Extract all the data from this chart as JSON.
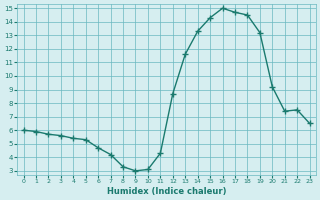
{
  "x": [
    0,
    1,
    2,
    3,
    4,
    5,
    6,
    7,
    8,
    9,
    10,
    11,
    12,
    13,
    14,
    15,
    16,
    17,
    18,
    19,
    20,
    21,
    22,
    23
  ],
  "y": [
    6.0,
    5.9,
    5.7,
    5.6,
    5.4,
    5.3,
    4.7,
    4.2,
    3.3,
    3.0,
    3.1,
    4.3,
    8.7,
    11.6,
    13.3,
    14.3,
    15.0,
    14.7,
    14.5,
    13.2,
    9.2,
    7.4,
    7.5,
    6.5
  ],
  "xlabel": "Humidex (Indice chaleur)",
  "line_color": "#1a7a6e",
  "bg_color": "#d6eef0",
  "grid_color": "#6ab8c0",
  "ylim": [
    3,
    15
  ],
  "xlim": [
    0,
    23
  ],
  "yticks": [
    3,
    4,
    5,
    6,
    7,
    8,
    9,
    10,
    11,
    12,
    13,
    14,
    15
  ],
  "xticks": [
    0,
    1,
    2,
    3,
    4,
    5,
    6,
    7,
    8,
    9,
    10,
    11,
    12,
    13,
    14,
    15,
    16,
    17,
    18,
    19,
    20,
    21,
    22,
    23
  ]
}
